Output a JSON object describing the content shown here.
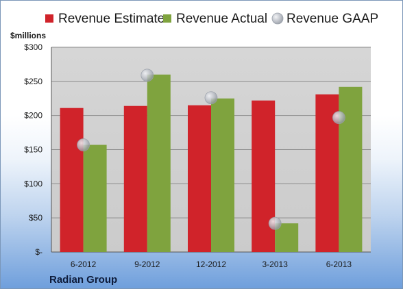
{
  "chart_data": {
    "type": "bar",
    "unit_label": "$millions",
    "categories": [
      "6-2012",
      "9-2012",
      "12-2012",
      "3-2013",
      "6-2013"
    ],
    "series": [
      {
        "name": "Revenue Estimate",
        "kind": "bar",
        "color": "#d0232a",
        "values": [
          211,
          214,
          215,
          222,
          231
        ]
      },
      {
        "name": "Revenue Actual",
        "kind": "bar",
        "color": "#7fa33e",
        "values": [
          157,
          260,
          225,
          42,
          242
        ]
      },
      {
        "name": "Revenue GAAP",
        "kind": "marker",
        "color": "#b8bcc4",
        "values": [
          157,
          259,
          226,
          42,
          197
        ]
      }
    ],
    "y_ticks": [
      "$-",
      "$50",
      "$100",
      "$150",
      "$200",
      "$250",
      "$300"
    ],
    "ylim": [
      0,
      300
    ],
    "grid": true,
    "legend_position": "top",
    "footer": "Radian Group"
  }
}
